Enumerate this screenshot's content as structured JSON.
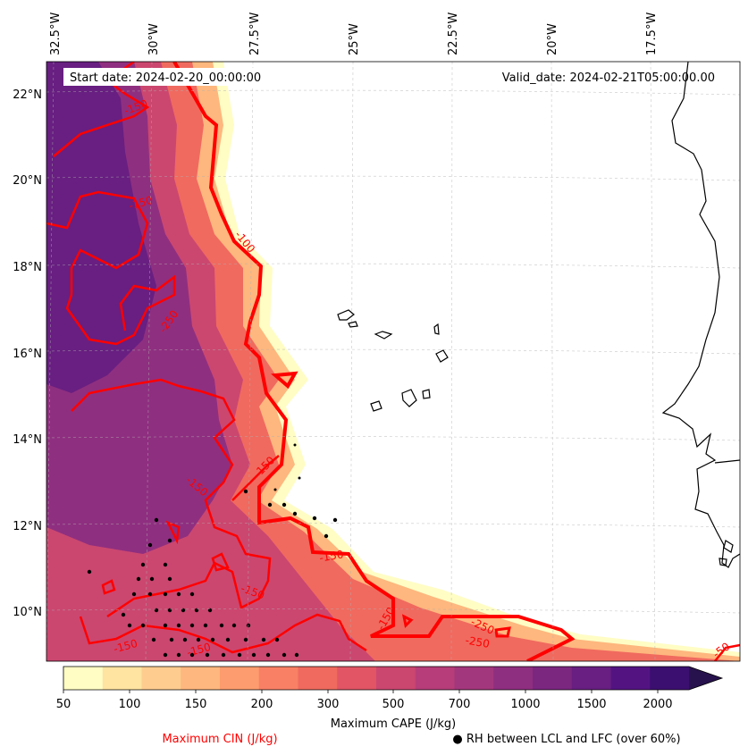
{
  "map": {
    "start_date": "Start date: 2024-02-20_00:00:00",
    "valid_date": "Valid_date: 2024-02-21T05:00:00.00",
    "lon_labels": [
      "32.5°W",
      "30°W",
      "27.5°W",
      "25°W",
      "22.5°W",
      "20°W",
      "17.5°W"
    ],
    "lat_labels": [
      "22°N",
      "20°N",
      "18°N",
      "16°N",
      "14°N",
      "12°N",
      "10°N"
    ],
    "contour_labels": [
      "-150",
      "-150",
      "-100",
      "-250",
      "-150",
      "-150",
      "-150",
      "-150",
      "-150",
      "-150",
      "-250",
      "-250",
      "-150",
      "-50"
    ]
  },
  "colorbar": {
    "ticks": [
      "50",
      "100",
      "150",
      "200",
      "300",
      "500",
      "700",
      "1000",
      "1500",
      "2000"
    ],
    "colors": [
      "#fffdc4",
      "#fee3a1",
      "#fecc8f",
      "#feb77e",
      "#fd9c6e",
      "#f98065",
      "#f06a5f",
      "#e15565",
      "#cb4770",
      "#b63d79",
      "#a3377d",
      "#8f2f80",
      "#7b2780",
      "#681f81",
      "#531482",
      "#3b0f70",
      "#27124d"
    ],
    "label": "Maximum CAPE (J/kg)"
  },
  "legend": {
    "cin_label": "Maximum CIN (J/kg)",
    "rh_label": "● RH between LCL and LFC (over 60%)",
    "cin_color": "#ff0000"
  }
}
